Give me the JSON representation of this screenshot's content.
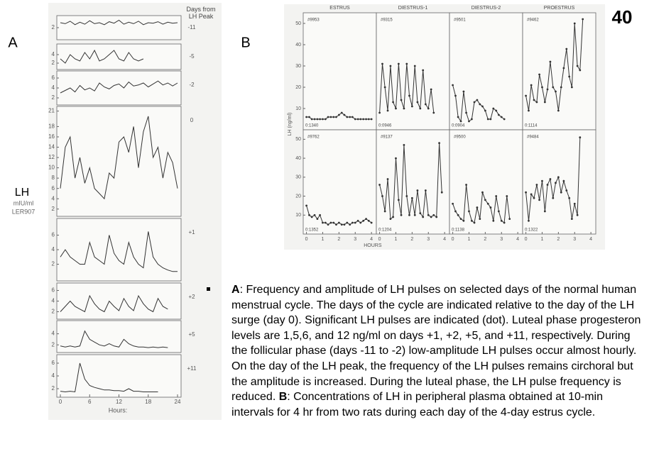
{
  "slide_number": "40",
  "panel_labels": [
    "A",
    "B"
  ],
  "caption": {
    "segments": [
      {
        "text": "A",
        "bold": true
      },
      {
        "text": ":  Frequency and amplitude of LH pulses on selected days of the normal human menstrual cycle. The days of the cycle are indicated relative to the day of the LH surge (day 0). Significant LH pulses are indicated (dot). Luteal phase progesteron levels are 1,5,6, and 12 ng/ml on days +1, +2, +5, and +11, respectively. During the follicular phase (days -11 to -2) low-amplitude LH pulses occur almost hourly. On the day of the LH peak, the frequency of the LH pulses remains circhoral but the amplitude is increased. During the luteal phase, the LH pulse frequency is reduced. ",
        "bold": false
      },
      {
        "text": "B",
        "bold": true
      },
      {
        "text": ": Concentrations of LH in peripheral plasma obtained at 10-min intervals for 4 hr from two rats during each day of the 4-day estrus cycle.",
        "bold": false
      }
    ]
  },
  "chart_data": [
    {
      "type": "line",
      "header": "Days from LH Peak",
      "ylabel": "LH",
      "yunit": "mIU/ml",
      "source": "LER907",
      "xlabel": "Hours:",
      "color": "#333333",
      "x": [
        0,
        1,
        2,
        3,
        4,
        5,
        6,
        7,
        8,
        9,
        10,
        11,
        12,
        13,
        14,
        15,
        16,
        17,
        18,
        19,
        20,
        21,
        22,
        23,
        24
      ],
      "xlim": [
        0,
        24
      ],
      "xticks": [
        0,
        6,
        12,
        18,
        24
      ],
      "panels": [
        {
          "label": "-11",
          "ylim": [
            0,
            4
          ],
          "yticks": [
            2
          ],
          "values": [
            3,
            2.8,
            3.3,
            2.6,
            3.1,
            2.7,
            3.4,
            2.8,
            3,
            2.6,
            3.2,
            2.9,
            3.5,
            2.7,
            3.1,
            2.8,
            3.3,
            2.6,
            3,
            2.9,
            3.2,
            2.7,
            3.1,
            2.9,
            3
          ]
        },
        {
          "label": "-5",
          "ylim": [
            1,
            6
          ],
          "yticks": [
            2,
            4
          ],
          "values": [
            3,
            2,
            4,
            3,
            2.5,
            4.5,
            3,
            5,
            2.5,
            3,
            4,
            5,
            3,
            2.5,
            4.5,
            3,
            2.5,
            3,
            null,
            null,
            null,
            null,
            null,
            null,
            null
          ]
        },
        {
          "label": "-2",
          "ylim": [
            1,
            7
          ],
          "yticks": [
            2,
            4,
            6
          ],
          "values": [
            3,
            3.5,
            4,
            3.2,
            4.5,
            3.6,
            4,
            3.4,
            5,
            4.2,
            3.8,
            4.5,
            4.8,
            4,
            5.2,
            4.4,
            4.6,
            5,
            4.2,
            4.8,
            5.4,
            4.6,
            5,
            4.4,
            5
          ]
        },
        {
          "label": "0",
          "ylim": [
            1,
            21.5
          ],
          "yticks": [
            2,
            4,
            6,
            8,
            10,
            12,
            14,
            16,
            18,
            21
          ],
          "values": [
            6,
            14,
            16,
            8,
            12,
            7,
            10,
            6,
            5,
            4,
            9,
            8,
            15,
            16,
            13,
            18,
            10,
            17,
            20,
            12,
            14,
            8,
            13,
            11,
            6
          ]
        },
        {
          "label": "+1",
          "ylim": [
            0,
            8
          ],
          "yticks": [
            2,
            4,
            6
          ],
          "values": [
            3,
            4,
            3,
            2.5,
            2,
            2,
            5,
            3,
            2.5,
            2,
            6,
            3.5,
            2.5,
            2,
            5,
            3,
            2,
            1.5,
            6.5,
            3,
            2,
            1.5,
            1.2,
            1,
            1
          ]
        },
        {
          "label": "+2",
          "ylim": [
            1,
            7
          ],
          "yticks": [
            2,
            4,
            6
          ],
          "values": [
            2,
            3,
            4,
            3,
            2.5,
            2,
            5,
            3.5,
            2.5,
            2,
            4,
            3,
            2.2,
            4.5,
            3,
            2.2,
            5,
            3.5,
            2.5,
            2,
            4.5,
            3,
            2.5,
            null,
            null
          ]
        },
        {
          "label": "+5",
          "ylim": [
            1,
            6
          ],
          "yticks": [
            2,
            4
          ],
          "values": [
            1.8,
            1.6,
            1.8,
            1.6,
            1.8,
            4.5,
            3,
            2.5,
            2,
            1.8,
            2.2,
            1.8,
            1.6,
            3,
            2.2,
            1.8,
            1.6,
            1.6,
            1.5,
            1.6,
            1.5,
            1.6,
            1.5,
            null,
            null
          ]
        },
        {
          "label": "+11",
          "ylim": [
            1,
            7
          ],
          "yticks": [
            2,
            4,
            6
          ],
          "values": [
            1.6,
            1.5,
            1.6,
            1.5,
            6,
            3.5,
            2.5,
            2.2,
            2,
            1.8,
            1.8,
            1.7,
            1.7,
            1.6,
            2,
            1.6,
            1.6,
            1.5,
            1.5,
            1.5,
            1.5,
            null,
            null,
            null,
            null
          ]
        }
      ]
    },
    {
      "type": "line",
      "ylabel": "LH (ng/ml)",
      "xlabel": "HOURS",
      "color": "#333333",
      "titles": [
        "ESTRUS",
        "DIESTRUS-1",
        "DIESTRUS-2",
        "PROESTRUS"
      ],
      "x": [
        0,
        0.17,
        0.33,
        0.5,
        0.67,
        0.83,
        1,
        1.17,
        1.33,
        1.5,
        1.67,
        1.83,
        2,
        2.17,
        2.33,
        2.5,
        2.67,
        2.83,
        3,
        3.17,
        3.33,
        3.5,
        3.67,
        3.83,
        4
      ],
      "xlim": [
        -0.2,
        4.3
      ],
      "xticks": [
        0,
        1,
        2,
        3,
        4
      ],
      "ylim": [
        0,
        55
      ],
      "yticks": [
        10,
        20,
        30,
        40,
        50
      ],
      "panels": [
        {
          "id": "#9953",
          "code": "0:1340",
          "values": [
            6,
            6,
            5,
            5,
            5,
            5,
            5,
            5,
            6,
            6,
            6,
            6,
            7,
            8,
            7,
            6,
            6,
            6,
            5,
            5,
            5,
            5,
            5,
            5,
            5
          ]
        },
        {
          "id": "#9315",
          "code": "0:0946",
          "values": [
            8,
            31,
            20,
            9,
            30,
            13,
            10,
            31,
            14,
            10,
            31,
            16,
            11,
            30,
            13,
            10,
            28,
            12,
            10,
            19,
            8,
            null,
            null,
            null,
            null
          ]
        },
        {
          "id": "#9501",
          "code": "0:0904",
          "values": [
            21,
            16,
            6,
            4,
            18,
            8,
            4,
            5,
            13,
            14,
            12,
            11,
            9,
            5,
            5,
            10,
            9,
            7,
            6,
            5,
            null,
            null,
            null,
            null,
            null
          ]
        },
        {
          "id": "#9462",
          "code": "0:1114",
          "values": [
            16,
            9,
            21,
            14,
            13,
            26,
            20,
            13,
            19,
            32,
            20,
            18,
            9,
            20,
            29,
            38,
            25,
            20,
            50,
            30,
            28,
            52,
            null,
            null,
            null
          ]
        },
        {
          "id": "#9762",
          "code": "0:1352",
          "values": [
            15,
            10,
            9,
            10,
            8,
            10,
            6,
            6,
            5,
            6,
            6,
            5,
            6,
            5,
            5,
            6,
            5,
            6,
            6,
            7,
            6,
            7,
            8,
            7,
            6
          ]
        },
        {
          "id": "#9137",
          "code": "0:1204",
          "values": [
            26,
            20,
            12,
            29,
            8,
            9,
            40,
            18,
            10,
            47,
            20,
            10,
            19,
            10,
            23,
            11,
            9,
            23,
            10,
            9,
            10,
            9,
            48,
            22,
            null
          ]
        },
        {
          "id": "#9500",
          "code": "0:1138",
          "values": [
            16,
            12,
            10,
            8,
            7,
            26,
            12,
            7,
            6,
            14,
            8,
            22,
            18,
            16,
            14,
            7,
            20,
            12,
            7,
            6,
            20,
            8,
            null,
            null,
            null
          ]
        },
        {
          "id": "#9484",
          "code": "0:1322",
          "values": [
            22,
            7,
            21,
            19,
            26,
            18,
            28,
            12,
            26,
            29,
            19,
            27,
            30,
            22,
            28,
            23,
            19,
            8,
            16,
            10,
            51,
            null,
            null,
            null,
            null
          ]
        }
      ]
    }
  ]
}
